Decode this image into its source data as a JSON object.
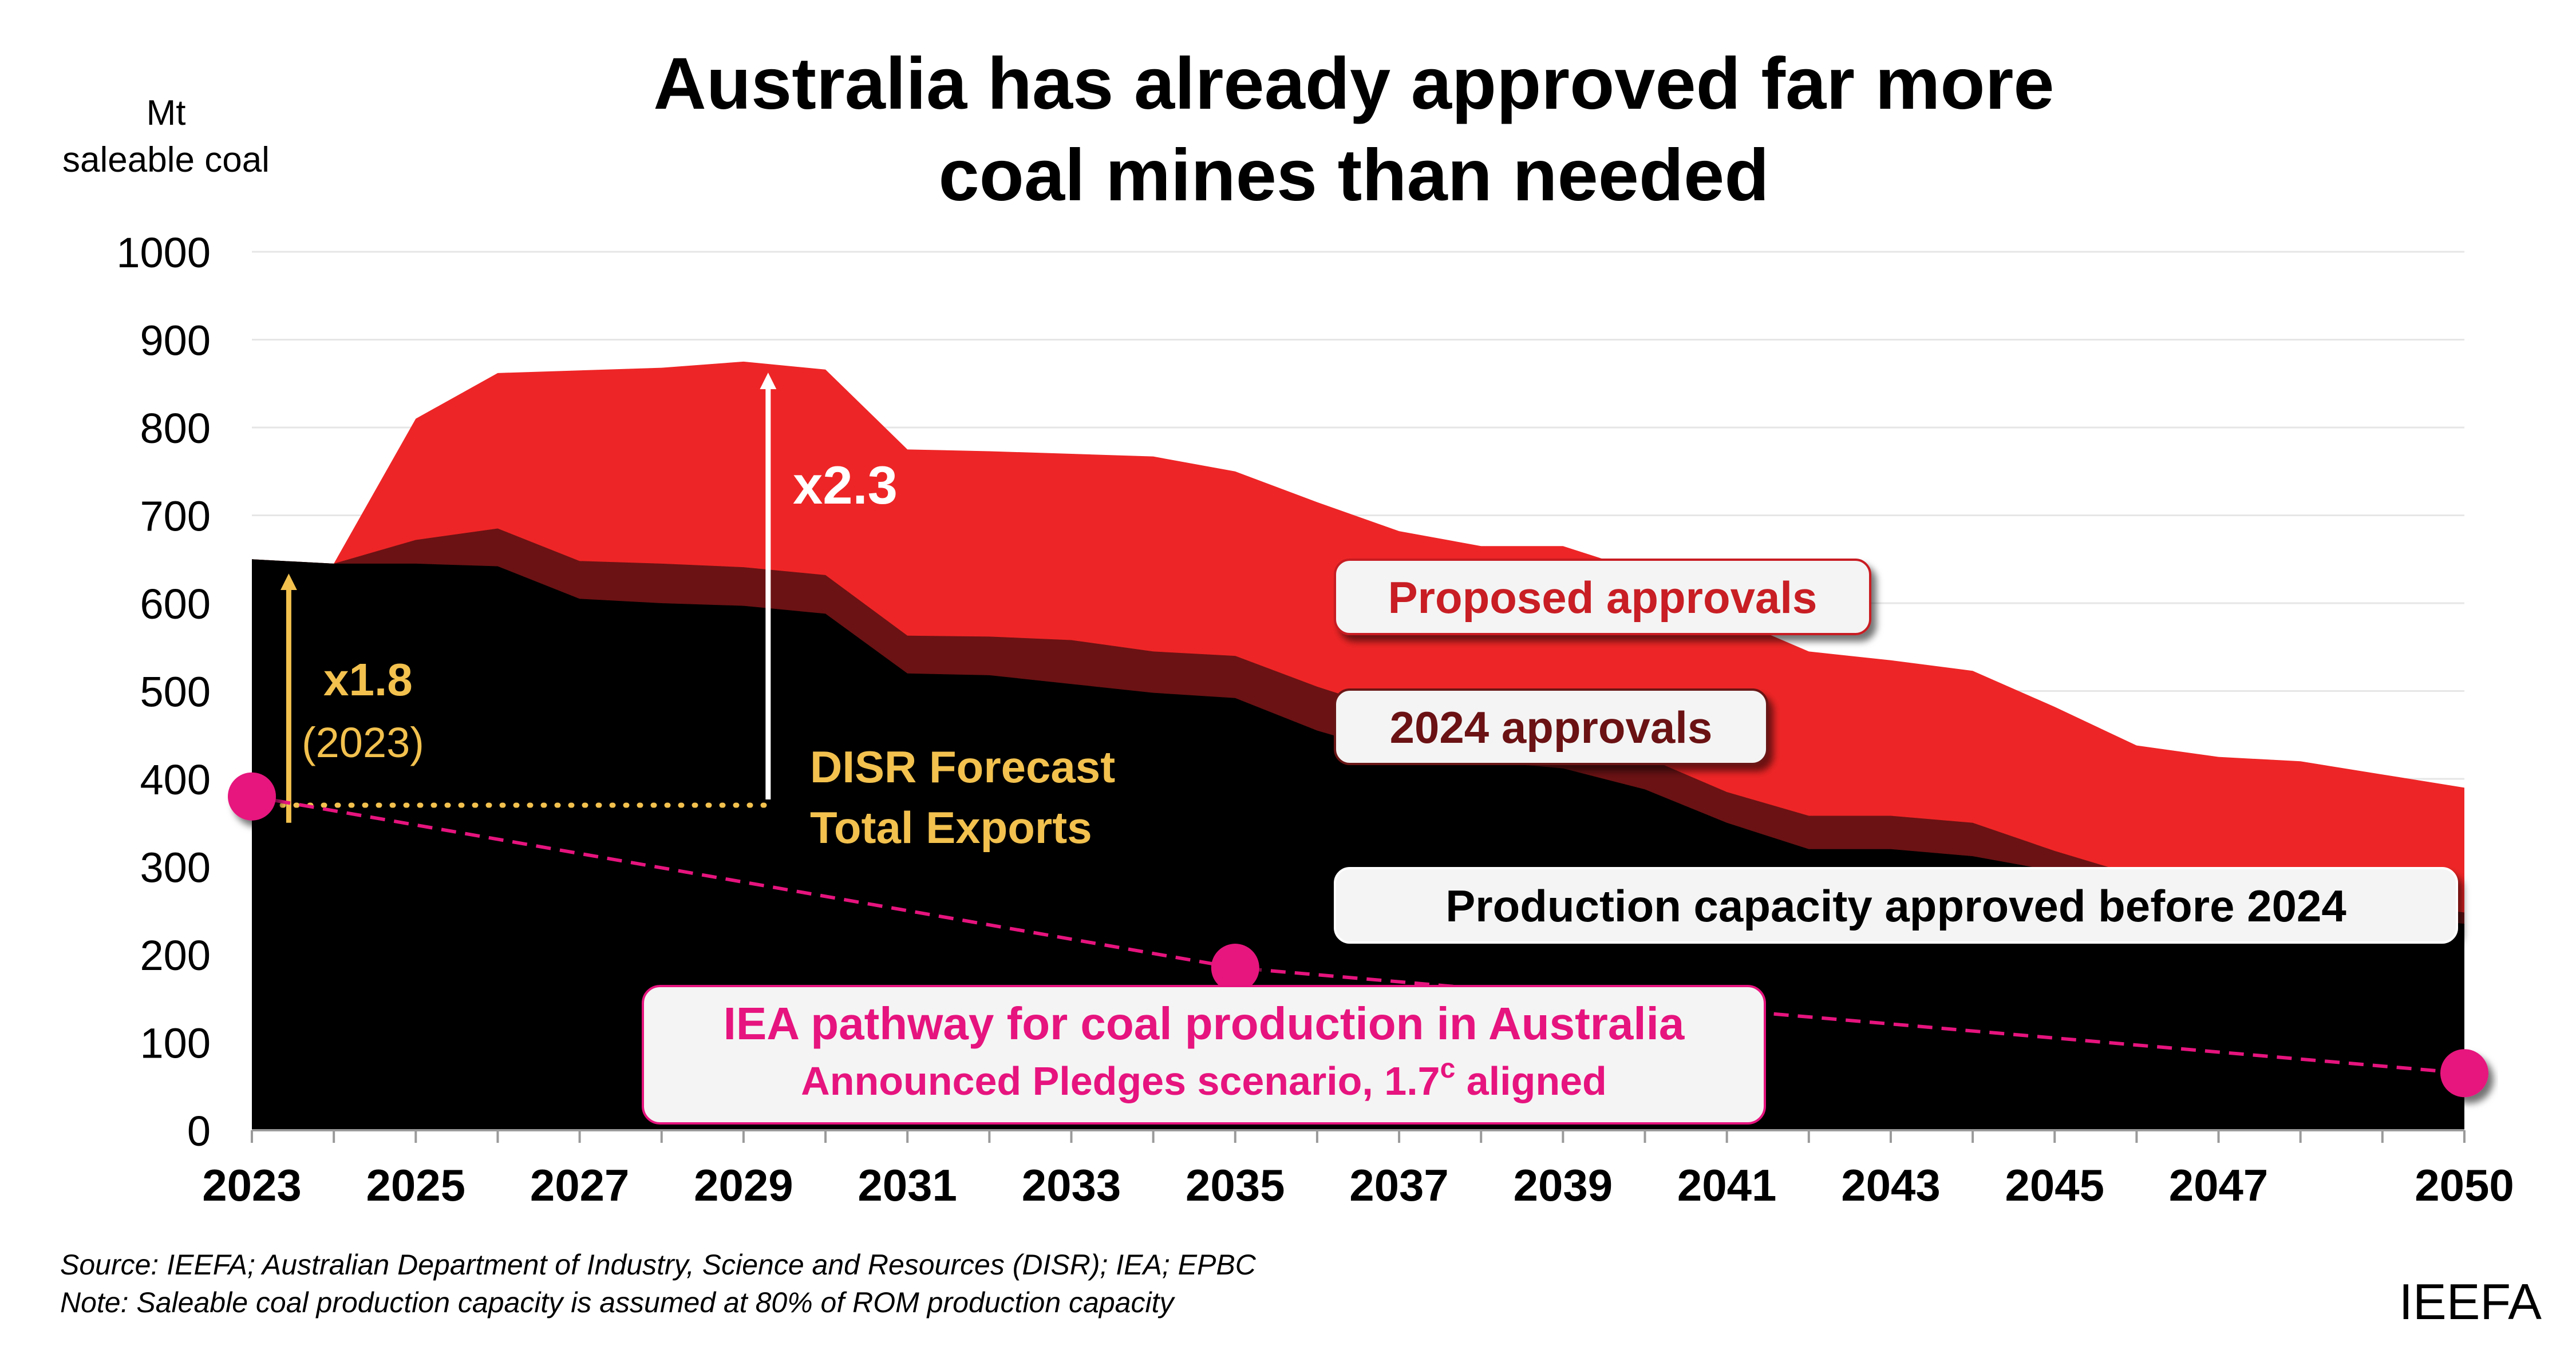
{
  "chart_data": {
    "type": "area",
    "stacked": true,
    "title_lines": [
      "Australia has already approved far more",
      "coal mines than needed"
    ],
    "ylabel_lines": [
      "Mt",
      "saleable coal"
    ],
    "ylim": [
      0,
      1000
    ],
    "yticks": [
      0,
      100,
      200,
      300,
      400,
      500,
      600,
      700,
      800,
      900,
      1000
    ],
    "xlim": [
      2023,
      2050
    ],
    "xtick_labels": [
      {
        "year": 2023,
        "label": "2023"
      },
      {
        "year": 2025,
        "label": "2025"
      },
      {
        "year": 2027,
        "label": "2027"
      },
      {
        "year": 2029,
        "label": "2029"
      },
      {
        "year": 2031,
        "label": "2031"
      },
      {
        "year": 2033,
        "label": "2033"
      },
      {
        "year": 2035,
        "label": "2035"
      },
      {
        "year": 2037,
        "label": "2037"
      },
      {
        "year": 2039,
        "label": "2039"
      },
      {
        "year": 2041,
        "label": "2041"
      },
      {
        "year": 2043,
        "label": "2043"
      },
      {
        "year": 2045,
        "label": "2045"
      },
      {
        "year": 2047,
        "label": "2047"
      },
      {
        "year": 2050,
        "label": "2050"
      }
    ],
    "x": [
      2023,
      2024,
      2025,
      2026,
      2027,
      2028,
      2029,
      2030,
      2031,
      2032,
      2033,
      2034,
      2035,
      2036,
      2037,
      2038,
      2039,
      2040,
      2041,
      2042,
      2043,
      2044,
      2045,
      2046,
      2047,
      2048,
      2049,
      2050
    ],
    "series": [
      {
        "name": "Production capacity approved before 2024",
        "label": "Production capacity approved before 2024",
        "color": "#000000",
        "top_values": [
          650,
          645,
          645,
          642,
          605,
          600,
          597,
          588,
          520,
          518,
          508,
          498,
          492,
          455,
          428,
          420,
          412,
          388,
          350,
          320,
          320,
          312,
          295,
          275,
          262,
          258,
          245,
          235
        ]
      },
      {
        "name": "2024 approvals",
        "label": "2024 approvals",
        "color": "#6b1214",
        "top_values": [
          650,
          645,
          672,
          685,
          648,
          645,
          641,
          632,
          563,
          562,
          558,
          545,
          540,
          505,
          475,
          462,
          448,
          425,
          385,
          358,
          358,
          350,
          318,
          290,
          275,
          270,
          258,
          248
        ]
      },
      {
        "name": "Proposed approvals",
        "label": "Proposed approvals",
        "color": "#ee2526",
        "top_values": [
          650,
          645,
          810,
          862,
          865,
          868,
          875,
          866,
          775,
          773,
          770,
          767,
          750,
          715,
          682,
          665,
          665,
          635,
          585,
          545,
          535,
          523,
          482,
          438,
          425,
          420,
          405,
          390
        ]
      }
    ],
    "disr_forecast": {
      "label_lines": [
        "DISR Forecast",
        "Total Exports"
      ],
      "value": 370,
      "from_year": 2023,
      "to_year": 2029.4,
      "color": "#f2c14e"
    },
    "iea_pathway": {
      "label_lines": [
        "IEA pathway for coal production in Australia",
        "Announced Pledges scenario, 1.7"
      ],
      "superscript": "c",
      "label_suffix": " aligned",
      "points": [
        {
          "year": 2023,
          "value": 380
        },
        {
          "year": 2035,
          "value": 185
        },
        {
          "year": 2050,
          "value": 65
        }
      ],
      "color": "#e6147e"
    },
    "annotations": [
      {
        "name": "multiplier-2023",
        "label": "x1.8",
        "sublabel": "(2023)",
        "color": "#f2c14e",
        "year": 2023.45,
        "from": 350,
        "to": 640
      },
      {
        "name": "multiplier-peak",
        "label": "x2.3",
        "color": "#ffffff",
        "year": 2029.3,
        "from": 370,
        "to": 870
      }
    ],
    "source": "Source: IEEFA; Australian Department of Industry, Science and Resources (DISR); IEA; EPBC",
    "note": "Note: Saleable coal production capacity is assumed at 80% of ROM production capacity",
    "brand": "IEEFA"
  }
}
